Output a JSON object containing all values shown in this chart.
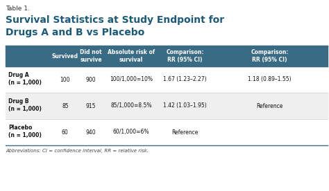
{
  "table_label": "Table 1.",
  "title_line1": "Survival Statistics at Study Endpoint for",
  "title_line2": "Drugs A and B vs Placebo",
  "header_bg": "#3a6b85",
  "header_text_color": "#FFFFFF",
  "background_color": "#FFFFFF",
  "abbreviations": "Abbreviations: CI = confidence interval, RR = relative risk.",
  "col_headers": [
    "Survived",
    "Did not\nsurvive",
    "Absolute risk of\nsurvival",
    "Comparison:\nRR (95% CI)",
    "Comparison:\nRR (95% CI)"
  ],
  "row_labels": [
    "Drug A\n(n = 1,000)",
    "Drug B\n(n = 1,000)",
    "Placebo\n(n = 1,000)"
  ],
  "data": [
    [
      "100",
      "900",
      "100/1,000=10%",
      "1.67 (1.23–2.27)",
      "1.18 (0.89–1.55)"
    ],
    [
      "85",
      "915",
      "85/1,000=8.5%",
      "1.42 (1.03–1.95)",
      "Reference"
    ],
    [
      "60",
      "940",
      "60/1,000=6%",
      "Reference",
      ""
    ]
  ],
  "title_color": "#1a5a7a",
  "label_color": "#555555",
  "row_colors": [
    "#FFFFFF",
    "#EFEFEF",
    "#FFFFFF"
  ],
  "separator_color": "#CCCCCC",
  "border_color": "#3a6b85"
}
